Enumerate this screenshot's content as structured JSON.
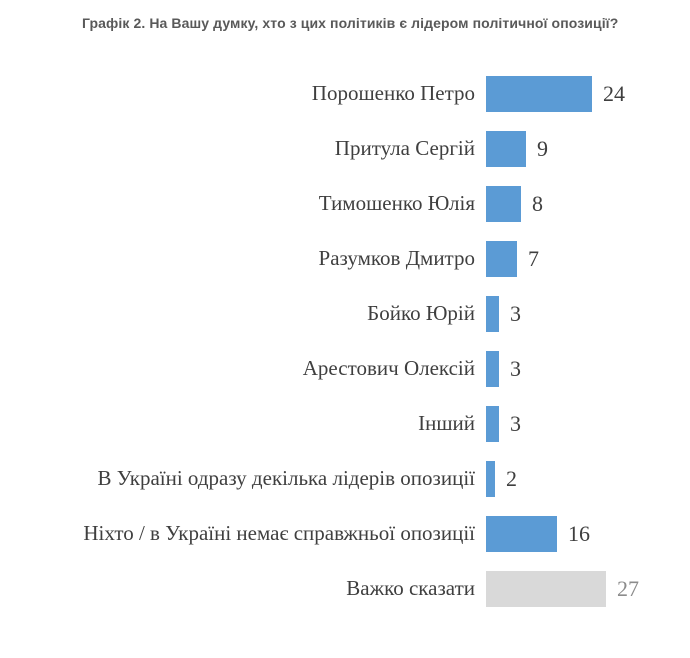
{
  "colors": {
    "background": "#ffffff",
    "title_text": "#595959",
    "category_text": "#3f3f3f",
    "bar_primary": "#5b9bd5",
    "bar_muted": "#d9d9d9"
  },
  "chart_data": {
    "type": "bar",
    "orientation": "horizontal",
    "title": "Графік 2. На Вашу думку, хто з цих політиків є лідером політичної опозиції?",
    "categories": [
      "Порошенко Петро",
      "Притула Сергій",
      "Тимошенко Юлія",
      "Разумков Дмитро",
      "Бойко Юрій",
      "Арестович Олексій",
      "Інший",
      "В Україні одразу декілька лідерів опозиції",
      "Ніхто / в Україні немає справжньої опозиції",
      "Важко сказати"
    ],
    "values": [
      24,
      9,
      8,
      7,
      3,
      3,
      3,
      2,
      16,
      27
    ],
    "bar_colors": [
      "#5b9bd5",
      "#5b9bd5",
      "#5b9bd5",
      "#5b9bd5",
      "#5b9bd5",
      "#5b9bd5",
      "#5b9bd5",
      "#5b9bd5",
      "#5b9bd5",
      "#d9d9d9"
    ],
    "value_label_colors": [
      "#3f3f3f",
      "#3f3f3f",
      "#3f3f3f",
      "#3f3f3f",
      "#3f3f3f",
      "#3f3f3f",
      "#3f3f3f",
      "#3f3f3f",
      "#3f3f3f",
      "#8c8c8c"
    ],
    "xlabel": "",
    "ylabel": "",
    "xlim": [
      0,
      30
    ],
    "grid": false,
    "legend": false,
    "value_labels_position": "outside-end"
  }
}
